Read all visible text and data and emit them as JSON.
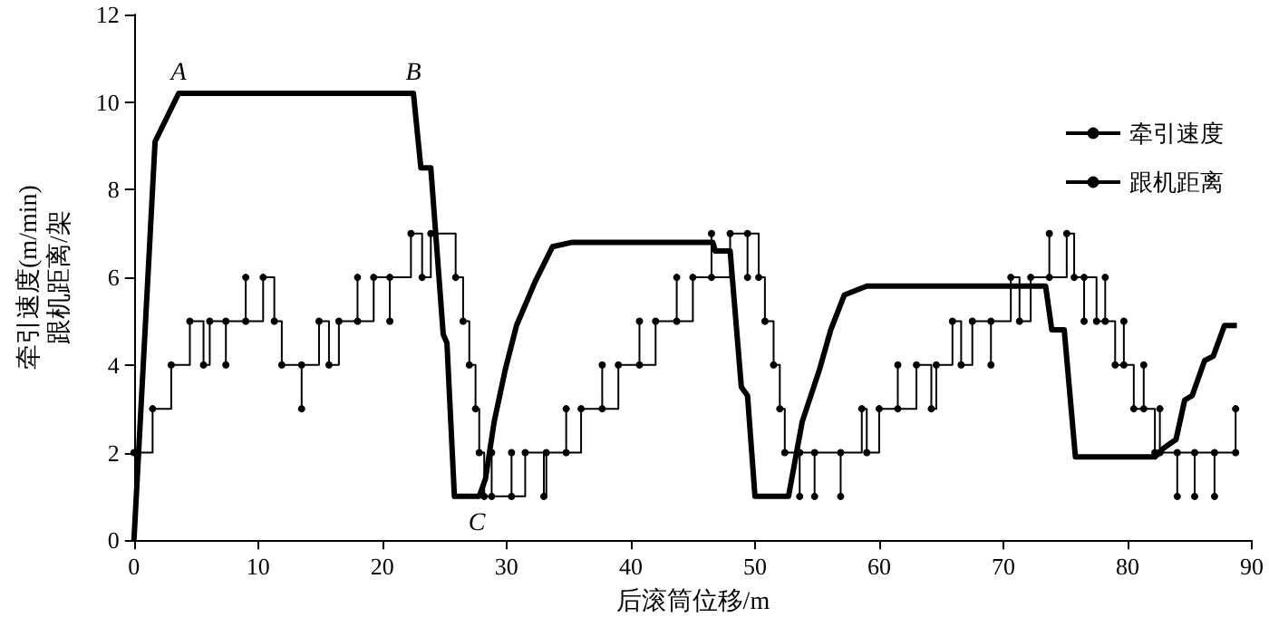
{
  "chart_data": {
    "type": "line",
    "xlabel": "后滚筒位移/m",
    "ylabel": "牵引速度(m/min)\n跟机距离/架",
    "xlim": [
      0,
      90
    ],
    "xticks": [
      0,
      10,
      20,
      30,
      40,
      50,
      60,
      70,
      80,
      90
    ],
    "ylim": [
      0,
      12
    ],
    "yticks": [
      0,
      2,
      4,
      6,
      8,
      10,
      12
    ],
    "grid": false,
    "legend": "right",
    "annotations": [
      {
        "text": "A",
        "x": 3.6,
        "y": 10.2
      },
      {
        "text": "B",
        "x": 22.5,
        "y": 10.2
      },
      {
        "text": "C",
        "x": 27.6,
        "y": 1
      }
    ],
    "series": [
      {
        "name": "牵引速度",
        "type": "line",
        "color": "#000000",
        "marker": "none",
        "x": [
          0,
          1.7,
          3.6,
          22.5,
          23.1,
          23.9,
          24.9,
          25.2,
          25.8,
          27.6,
          27.8,
          28.3,
          29,
          29.9,
          30.8,
          32.3,
          33.7,
          35.3,
          46.6,
          46.8,
          48,
          48.9,
          49.4,
          50,
          52.7,
          53.8,
          55.2,
          56.1,
          57.2,
          59,
          73.4,
          73.9,
          74.9,
          75.8,
          82.2,
          82.9,
          83.9,
          84.6,
          85.2,
          86.2,
          86.9,
          87.8,
          88.8
        ],
        "values": [
          0,
          9.1,
          10.2,
          10.2,
          8.5,
          8.5,
          4.7,
          4.5,
          1,
          1,
          1,
          1.4,
          2.7,
          3.9,
          4.9,
          5.9,
          6.7,
          6.8,
          6.8,
          6.6,
          6.6,
          3.5,
          3.3,
          1,
          1,
          2.7,
          3.9,
          4.8,
          5.6,
          5.8,
          5.8,
          4.8,
          4.8,
          1.9,
          1.9,
          2.1,
          2.3,
          3.2,
          3.3,
          4.1,
          4.2,
          4.9,
          4.9
        ]
      },
      {
        "name": "跟机距离",
        "type": "step",
        "color": "#000000",
        "marker": "circle",
        "x": [
          0,
          1.5,
          3,
          4.5,
          5.6,
          6.1,
          7.4,
          7.4,
          9,
          9,
          10.4,
          11.3,
          11.9,
          13.5,
          13.5,
          14.9,
          15.7,
          16.5,
          18,
          18,
          19.3,
          20.6,
          20.6,
          22.3,
          23.2,
          23.9,
          25.9,
          26.5,
          27,
          27.5,
          27.8,
          28.2,
          28.8,
          28.8,
          30.4,
          30.4,
          31.5,
          33,
          33.2,
          34.8,
          34.8,
          36,
          37.7,
          37.7,
          39,
          40.7,
          40.7,
          42,
          43.7,
          43.7,
          45,
          46.5,
          46.5,
          48,
          49.4,
          49.4,
          50.3,
          50.8,
          51.5,
          52,
          52.4,
          53.6,
          53.6,
          54.8,
          54.8,
          56.9,
          56.9,
          58.6,
          59,
          60,
          61.5,
          61.5,
          63,
          64.2,
          64.6,
          65.9,
          66.6,
          67.5,
          69,
          69,
          70.6,
          71.3,
          72.2,
          73.7,
          73.7,
          75.1,
          75.7,
          76.5,
          76.5,
          77.5,
          78.2,
          78.2,
          79,
          79.7,
          79.7,
          80.5,
          81.3,
          81.3,
          82.2,
          82.6,
          82.6,
          84,
          84,
          85.4,
          85.4,
          87,
          87,
          88.7,
          88.7
        ],
        "values": [
          2,
          3,
          4,
          5,
          4,
          5,
          4,
          5,
          6,
          5,
          6,
          5,
          4,
          3,
          4,
          5,
          4,
          5,
          6,
          5,
          6,
          5,
          6,
          7,
          6,
          7,
          6,
          5,
          4,
          3,
          2,
          1,
          2,
          1,
          2,
          1,
          2,
          1,
          2,
          3,
          2,
          3,
          4,
          3,
          4,
          5,
          4,
          5,
          6,
          5,
          6,
          7,
          6,
          7,
          6,
          7,
          6,
          5,
          4,
          3,
          2,
          1,
          2,
          1,
          2,
          1,
          2,
          3,
          2,
          3,
          4,
          3,
          4,
          3,
          4,
          5,
          4,
          5,
          4,
          5,
          6,
          5,
          6,
          7,
          6,
          7,
          6,
          5,
          6,
          5,
          6,
          5,
          4,
          5,
          4,
          3,
          4,
          3,
          2,
          3,
          2,
          1,
          2,
          1,
          2,
          1,
          2,
          2,
          3
        ]
      }
    ]
  }
}
